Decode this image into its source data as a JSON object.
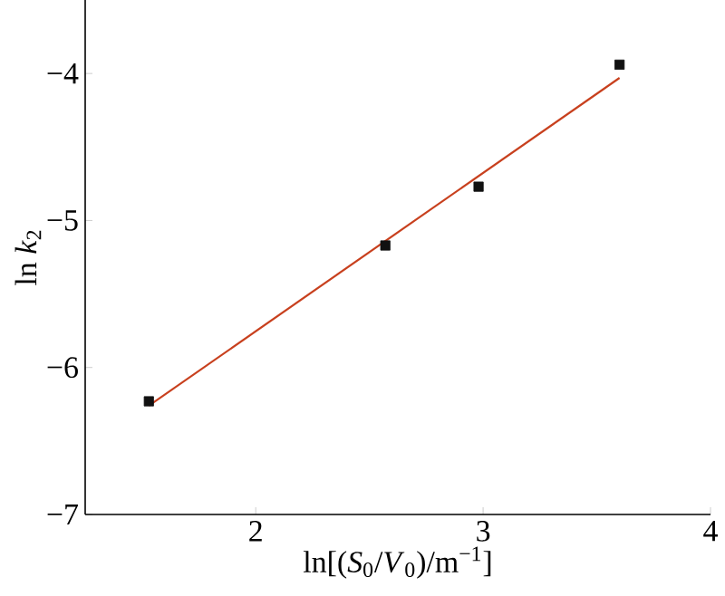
{
  "chart_data": {
    "type": "scatter",
    "xlabel": "ln[(*S*$_{0}$/*V*$_{0}$)/m$^{−1}$]",
    "ylabel": "ln *k*$_{2}$",
    "series": [
      {
        "color": "#111111",
        "marker": "square",
        "x": [
          1.53,
          2.57,
          2.98,
          3.6
        ],
        "values": [
          -6.23,
          -5.17,
          -4.77,
          -3.94
        ]
      },
      {
        "type": "line",
        "color": "#c8401e",
        "marker": "none",
        "x": [
          1.53,
          3.6
        ],
        "values": [
          -6.26,
          -4.03
        ]
      }
    ],
    "xlim": [
      1.25,
      4
    ],
    "ylim": [
      -7,
      -3.5
    ],
    "xticks": [
      2,
      3,
      4
    ],
    "yticks": [
      {
        "value": -4,
        "label": "−4"
      },
      {
        "value": -5,
        "label": "−5"
      },
      {
        "value": -6,
        "label": "−6"
      },
      {
        "value": -7,
        "label": "−7"
      }
    ]
  }
}
